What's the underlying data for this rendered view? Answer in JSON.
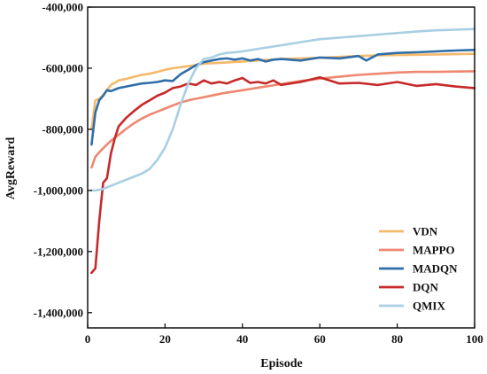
{
  "chart_data": {
    "type": "line",
    "xlabel": "Episode",
    "ylabel": "AvgReward",
    "xlim": [
      0,
      100
    ],
    "ylim": [
      -1450000,
      -400000
    ],
    "xticks": [
      0,
      20,
      40,
      60,
      80,
      100
    ],
    "yticks": [
      -400000,
      -600000,
      -800000,
      -1000000,
      -1200000,
      -1400000
    ],
    "xtick_labels": [
      "0",
      "20",
      "40",
      "60",
      "80",
      "100"
    ],
    "ytick_labels": [
      "-400,000",
      "-600,000",
      "-800,000",
      "-1,000,000",
      "-1,200,000",
      "-1,400,000"
    ],
    "grid": false,
    "legend_position": "bottom-right",
    "series": [
      {
        "name": "VDN",
        "color": "#f5b96b",
        "x": [
          1,
          2,
          3,
          4,
          5,
          6,
          8,
          10,
          12,
          14,
          16,
          18,
          20,
          22,
          25,
          28,
          30,
          35,
          40,
          45,
          50,
          55,
          60,
          65,
          70,
          75,
          80,
          85,
          90,
          95,
          100
        ],
        "y": [
          -800000,
          -705000,
          -700000,
          -688000,
          -672000,
          -655000,
          -640000,
          -635000,
          -628000,
          -622000,
          -618000,
          -612000,
          -605000,
          -600000,
          -595000,
          -590000,
          -585000,
          -582000,
          -578000,
          -574000,
          -570000,
          -568000,
          -566000,
          -563000,
          -560000,
          -558000,
          -557000,
          -556000,
          -555000,
          -554000,
          -553000
        ]
      },
      {
        "name": "MAPPO",
        "color": "#ee8870",
        "x": [
          1,
          2,
          3,
          4,
          5,
          6,
          8,
          10,
          12,
          14,
          16,
          18,
          20,
          22,
          24,
          26,
          28,
          30,
          35,
          40,
          45,
          50,
          55,
          60,
          65,
          70,
          75,
          80,
          85,
          90,
          95,
          100
        ],
        "y": [
          -925000,
          -890000,
          -875000,
          -862000,
          -850000,
          -838000,
          -818000,
          -798000,
          -780000,
          -765000,
          -752000,
          -742000,
          -732000,
          -722000,
          -712000,
          -705000,
          -700000,
          -695000,
          -682000,
          -672000,
          -662000,
          -652000,
          -642000,
          -634000,
          -628000,
          -622000,
          -618000,
          -614000,
          -612000,
          -612000,
          -611000,
          -610000
        ]
      },
      {
        "name": "MADQN",
        "color": "#2f6ea8",
        "x": [
          1,
          2,
          3,
          4,
          5,
          6,
          8,
          10,
          12,
          14,
          16,
          18,
          20,
          22,
          24,
          26,
          28,
          30,
          32,
          34,
          36,
          38,
          40,
          42,
          44,
          46,
          48,
          50,
          55,
          60,
          65,
          70,
          72,
          75,
          80,
          85,
          90,
          95,
          100
        ],
        "y": [
          -850000,
          -745000,
          -705000,
          -690000,
          -672000,
          -675000,
          -665000,
          -660000,
          -655000,
          -650000,
          -648000,
          -645000,
          -640000,
          -642000,
          -620000,
          -605000,
          -590000,
          -580000,
          -575000,
          -570000,
          -568000,
          -572000,
          -568000,
          -575000,
          -570000,
          -578000,
          -572000,
          -570000,
          -575000,
          -565000,
          -568000,
          -560000,
          -575000,
          -555000,
          -550000,
          -548000,
          -545000,
          -542000,
          -540000
        ]
      },
      {
        "name": "DQN",
        "color": "#c62a2a",
        "x": [
          1,
          2,
          3,
          4,
          5,
          6,
          7,
          8,
          10,
          12,
          14,
          16,
          18,
          20,
          22,
          24,
          26,
          28,
          30,
          32,
          34,
          36,
          38,
          40,
          42,
          44,
          46,
          48,
          50,
          55,
          60,
          65,
          70,
          75,
          80,
          85,
          90,
          95,
          100
        ],
        "y": [
          -1270000,
          -1255000,
          -1100000,
          -975000,
          -960000,
          -880000,
          -830000,
          -790000,
          -762000,
          -740000,
          -720000,
          -705000,
          -690000,
          -680000,
          -665000,
          -660000,
          -650000,
          -655000,
          -640000,
          -650000,
          -645000,
          -650000,
          -640000,
          -632000,
          -648000,
          -645000,
          -650000,
          -640000,
          -655000,
          -645000,
          -630000,
          -650000,
          -648000,
          -655000,
          -645000,
          -658000,
          -652000,
          -660000,
          -665000
        ]
      },
      {
        "name": "QMIX",
        "color": "#a8cfe3",
        "x": [
          1,
          2,
          3,
          4,
          5,
          6,
          8,
          10,
          12,
          14,
          16,
          18,
          20,
          22,
          24,
          26,
          28,
          30,
          32,
          34,
          36,
          38,
          40,
          45,
          50,
          55,
          60,
          65,
          70,
          75,
          80,
          85,
          90,
          95,
          100
        ],
        "y": [
          -1000000,
          -1000000,
          -998000,
          -995000,
          -990000,
          -985000,
          -975000,
          -965000,
          -955000,
          -945000,
          -930000,
          -900000,
          -860000,
          -800000,
          -720000,
          -650000,
          -600000,
          -570000,
          -565000,
          -555000,
          -550000,
          -548000,
          -545000,
          -535000,
          -525000,
          -515000,
          -505000,
          -500000,
          -495000,
          -490000,
          -485000,
          -480000,
          -476000,
          -474000,
          -472000
        ]
      }
    ]
  }
}
